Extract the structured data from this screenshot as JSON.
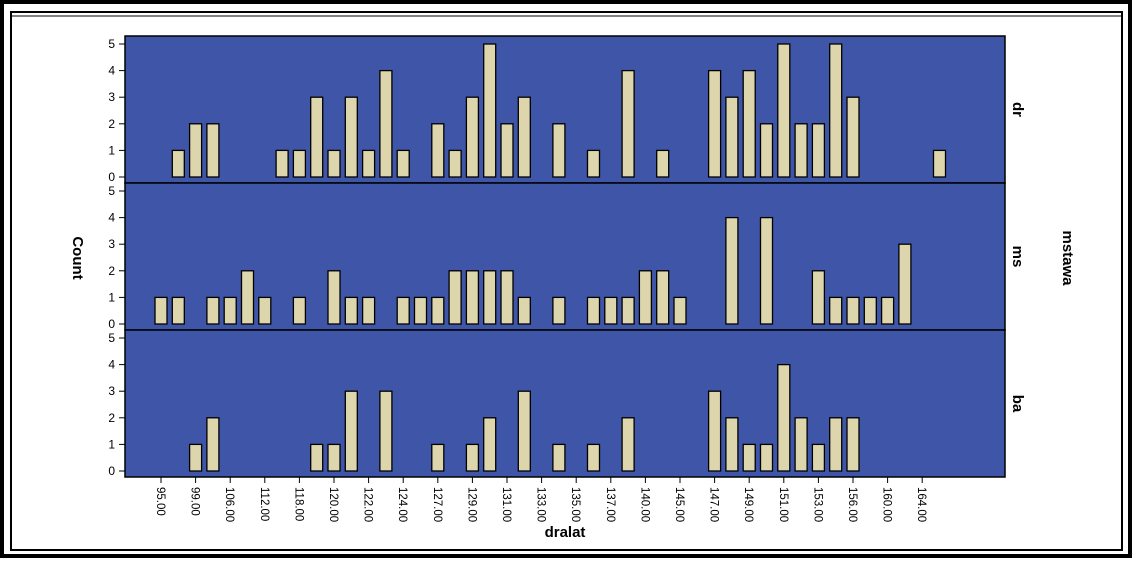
{
  "chart_data": {
    "type": "bar",
    "xlabel": "dralat",
    "ylabel": "Count",
    "panel_group_label": "mstawa",
    "ylim": [
      0,
      5
    ],
    "y_ticks": [
      "0",
      "1",
      "2",
      "3",
      "4",
      "5"
    ],
    "x_tick_labels": [
      "95.00",
      "99.00",
      "106.00",
      "112.00",
      "118.00",
      "120.00",
      "122.00",
      "124.00",
      "127.00",
      "129.00",
      "131.00",
      "133.00",
      "135.00",
      "137.00",
      "140.00",
      "145.00",
      "147.00",
      "149.00",
      "151.00",
      "153.00",
      "156.00",
      "160.00",
      "164.00"
    ],
    "n_slots": 46,
    "panels": [
      {
        "name": "dr",
        "counts": [
          0,
          1,
          2,
          2,
          0,
          0,
          0,
          1,
          1,
          3,
          1,
          3,
          1,
          4,
          1,
          0,
          2,
          1,
          3,
          5,
          2,
          3,
          0,
          2,
          0,
          1,
          0,
          4,
          0,
          1,
          0,
          0,
          4,
          3,
          4,
          2,
          5,
          2,
          2,
          5,
          3,
          0,
          0,
          0,
          0,
          1
        ]
      },
      {
        "name": "ms",
        "counts": [
          1,
          1,
          0,
          1,
          1,
          2,
          1,
          0,
          1,
          0,
          2,
          1,
          1,
          0,
          1,
          1,
          1,
          2,
          2,
          2,
          2,
          1,
          0,
          1,
          0,
          1,
          1,
          1,
          2,
          2,
          1,
          0,
          0,
          4,
          0,
          4,
          0,
          0,
          2,
          1,
          1,
          1,
          1,
          3,
          0,
          0
        ]
      },
      {
        "name": "ba",
        "counts": [
          0,
          0,
          1,
          2,
          0,
          0,
          0,
          0,
          0,
          1,
          1,
          3,
          0,
          3,
          0,
          0,
          1,
          0,
          1,
          2,
          0,
          3,
          0,
          1,
          0,
          1,
          0,
          2,
          0,
          0,
          0,
          0,
          3,
          2,
          1,
          1,
          4,
          2,
          1,
          2,
          2,
          0,
          0,
          0,
          0,
          0
        ]
      }
    ],
    "colors": {
      "panel_background": "#3f56a8",
      "bar_fill": "#ddd5ac",
      "bar_stroke": "#000000"
    },
    "grid": false,
    "legend": "none"
  }
}
